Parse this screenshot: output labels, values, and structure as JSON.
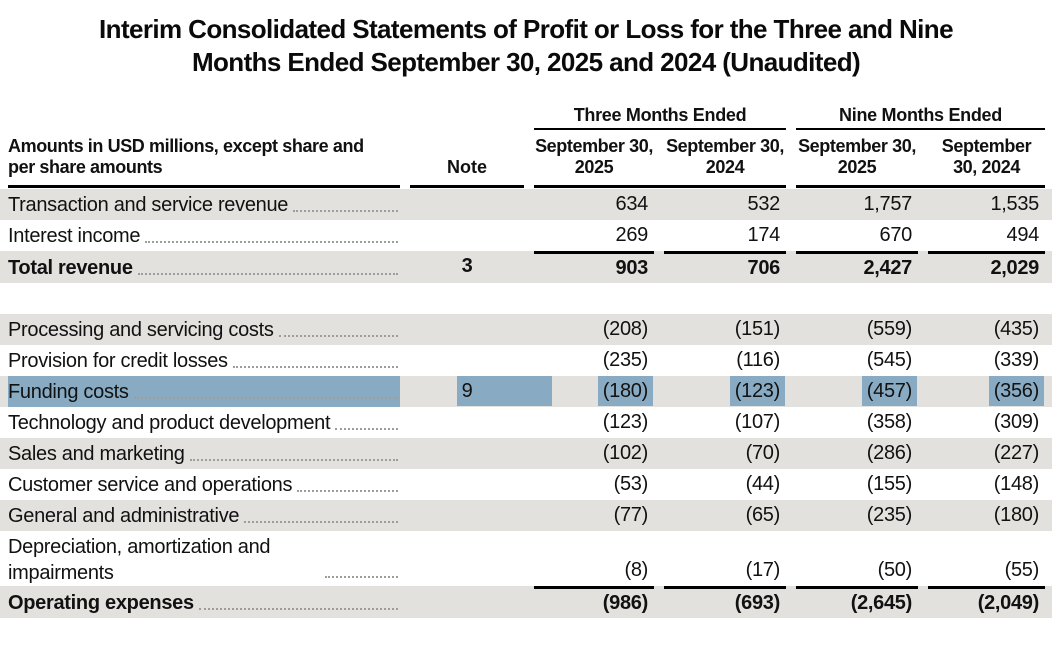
{
  "page": {
    "title_line1": "Interim Consolidated Statements of Profit or Loss for the Three and Nine",
    "title_line2": "Months Ended September 30, 2025 and 2024 (Unaudited)"
  },
  "table": {
    "corner_note": "Amounts in USD millions, except share and per share amounts",
    "note_header": "Note",
    "group_headers": [
      "Three Months Ended",
      "Nine Months Ended"
    ],
    "column_headers": [
      "September 30, 2025",
      "September 30, 2024",
      "September 30, 2025",
      "September 30, 2024"
    ],
    "colors": {
      "row_shade": "#e3e1dd",
      "selection_highlight": "#88abc3",
      "rule": "#000000",
      "leader_dots": "#9d9d99"
    },
    "rows": [
      {
        "label": "Transaction and service revenue",
        "note": "",
        "values": [
          "634",
          "532",
          "1,757",
          "1,535"
        ],
        "shaded": true
      },
      {
        "label": "Interest income",
        "note": "",
        "values": [
          "269",
          "174",
          "670",
          "494"
        ]
      },
      {
        "label": "Total revenue",
        "note": "3",
        "values": [
          "903",
          "706",
          "2,427",
          "2,029"
        ],
        "shaded": true,
        "bold": true,
        "rule_above_values": true
      },
      {
        "spacer": true
      },
      {
        "label": "Processing and servicing costs",
        "note": "",
        "values": [
          "(208)",
          "(151)",
          "(559)",
          "(435)"
        ],
        "shaded": true
      },
      {
        "label": "Provision for credit losses",
        "note": "",
        "values": [
          "(235)",
          "(116)",
          "(545)",
          "(339)"
        ]
      },
      {
        "label": "Funding costs",
        "note": "9",
        "values": [
          "(180)",
          "(123)",
          "(457)",
          "(356)"
        ],
        "shaded": true,
        "highlighted": true
      },
      {
        "label": "Technology and product development",
        "note": "",
        "values": [
          "(123)",
          "(107)",
          "(358)",
          "(309)"
        ]
      },
      {
        "label": "Sales and marketing",
        "note": "",
        "values": [
          "(102)",
          "(70)",
          "(286)",
          "(227)"
        ],
        "shaded": true
      },
      {
        "label": "Customer service and operations",
        "note": "",
        "values": [
          "(53)",
          "(44)",
          "(155)",
          "(148)"
        ]
      },
      {
        "label": "General and administrative",
        "note": "",
        "values": [
          "(77)",
          "(65)",
          "(235)",
          "(180)"
        ],
        "shaded": true
      },
      {
        "label": "Depreciation, amortization and impairments",
        "note": "",
        "values": [
          "(8)",
          "(17)",
          "(50)",
          "(55)"
        ],
        "two_line": true
      },
      {
        "label": "Operating expenses",
        "note": "",
        "values": [
          "(986)",
          "(693)",
          "(2,645)",
          "(2,049)"
        ],
        "shaded": true,
        "bold": true,
        "rule_above_values": true
      }
    ]
  }
}
